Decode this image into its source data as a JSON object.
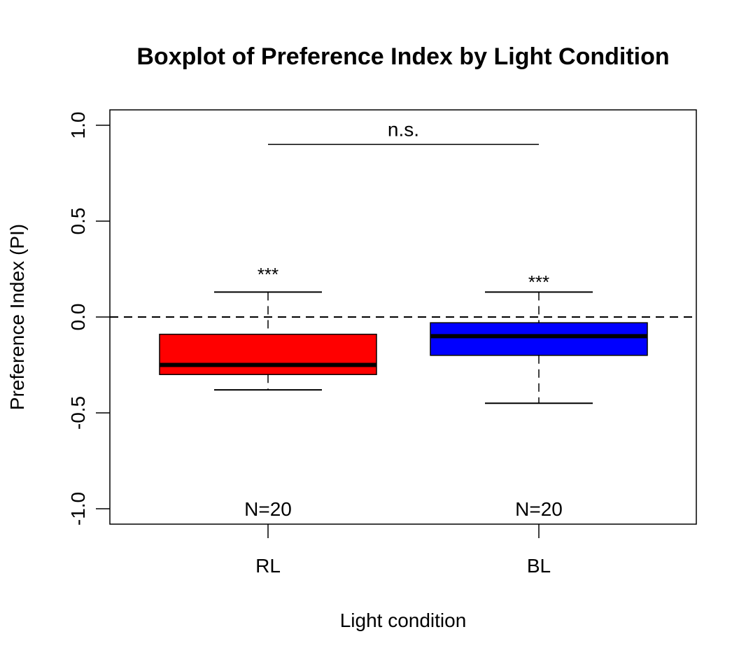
{
  "chart_data": {
    "type": "boxplot",
    "title": "Boxplot of Preference Index by Light Condition",
    "xlabel": "Light condition",
    "ylabel": "Preference Index (PI)",
    "ylim": [
      -1.08,
      1.08
    ],
    "yticks": [
      -1.0,
      -0.5,
      0.0,
      0.5,
      1.0
    ],
    "ytick_labels": [
      "-1.0",
      "-0.5",
      "0.0",
      "0.5",
      "1.0"
    ],
    "categories": [
      "RL",
      "BL"
    ],
    "reference_line": 0.0,
    "boxes": [
      {
        "name": "RL",
        "color": "#ff0000",
        "whisker_low": -0.38,
        "q1": -0.3,
        "median": -0.25,
        "q3": -0.09,
        "whisker_high": 0.13,
        "significance": "***",
        "sig_y": 0.24,
        "n_label": "N=20"
      },
      {
        "name": "BL",
        "color": "#0000ff",
        "whisker_low": -0.45,
        "q1": -0.2,
        "median": -0.1,
        "q3": -0.03,
        "whisker_high": 0.13,
        "significance": "***",
        "sig_y": 0.2,
        "n_label": "N=20"
      }
    ],
    "comparison": {
      "from": "RL",
      "to": "BL",
      "y": 0.9,
      "label": "n.s.",
      "label_y": 0.98
    },
    "n_label_y": -1.0,
    "grid": false,
    "legend": "none"
  }
}
